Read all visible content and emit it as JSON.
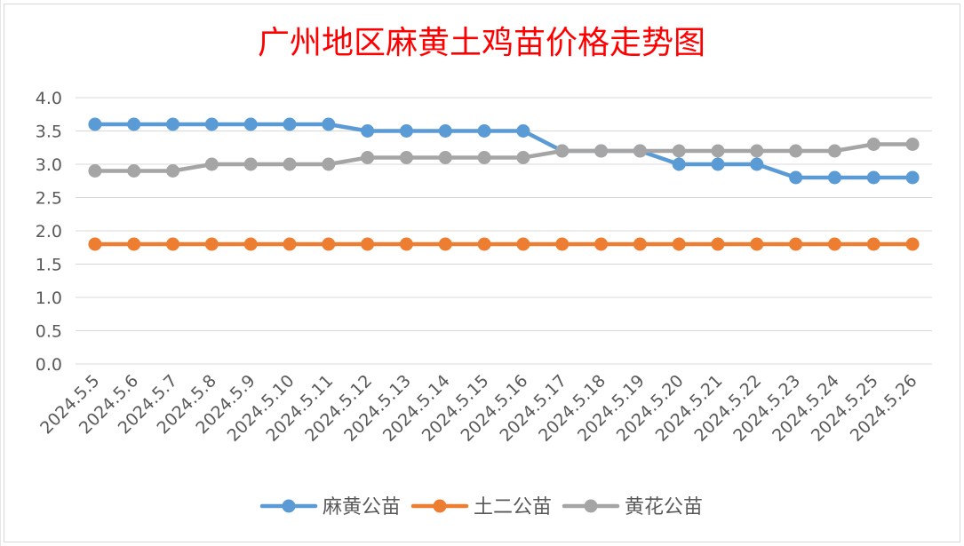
{
  "chart_data": {
    "type": "line",
    "title": "广州地区麻黄土鸡苗价格走势图",
    "categories": [
      "2024.5.5",
      "2024.5.6",
      "2024.5.7",
      "2024.5.8",
      "2024.5.9",
      "2024.5.10",
      "2024.5.11",
      "2024.5.12",
      "2024.5.13",
      "2024.5.14",
      "2024.5.15",
      "2024.5.16",
      "2024.5.17",
      "2024.5.18",
      "2024.5.19",
      "2024.5.20",
      "2024.5.21",
      "2024.5.22",
      "2024.5.23",
      "2024.5.24",
      "2024.5.25",
      "2024.5.26"
    ],
    "series": [
      {
        "name": "麻黄公苗",
        "color": "#5b9bd5",
        "values": [
          3.6,
          3.6,
          3.6,
          3.6,
          3.6,
          3.6,
          3.6,
          3.5,
          3.5,
          3.5,
          3.5,
          3.5,
          3.2,
          3.2,
          3.2,
          3.0,
          3.0,
          3.0,
          2.8,
          2.8,
          2.8,
          2.8
        ]
      },
      {
        "name": "土二公苗",
        "color": "#ed7d31",
        "values": [
          1.8,
          1.8,
          1.8,
          1.8,
          1.8,
          1.8,
          1.8,
          1.8,
          1.8,
          1.8,
          1.8,
          1.8,
          1.8,
          1.8,
          1.8,
          1.8,
          1.8,
          1.8,
          1.8,
          1.8,
          1.8,
          1.8
        ]
      },
      {
        "name": "黄花公苗",
        "color": "#a5a5a5",
        "values": [
          2.9,
          2.9,
          2.9,
          3.0,
          3.0,
          3.0,
          3.0,
          3.1,
          3.1,
          3.1,
          3.1,
          3.1,
          3.2,
          3.2,
          3.2,
          3.2,
          3.2,
          3.2,
          3.2,
          3.2,
          3.3,
          3.3
        ]
      }
    ],
    "ylim": [
      0,
      4.0
    ],
    "yticks": [
      "0.0",
      "0.5",
      "1.0",
      "1.5",
      "2.0",
      "2.5",
      "3.0",
      "3.5",
      "4.0"
    ],
    "grid": true,
    "legend_position": "bottom",
    "title_color": "#ff0000",
    "gridline_color": "#d9d9d9",
    "axis_text_color": "#595959"
  }
}
